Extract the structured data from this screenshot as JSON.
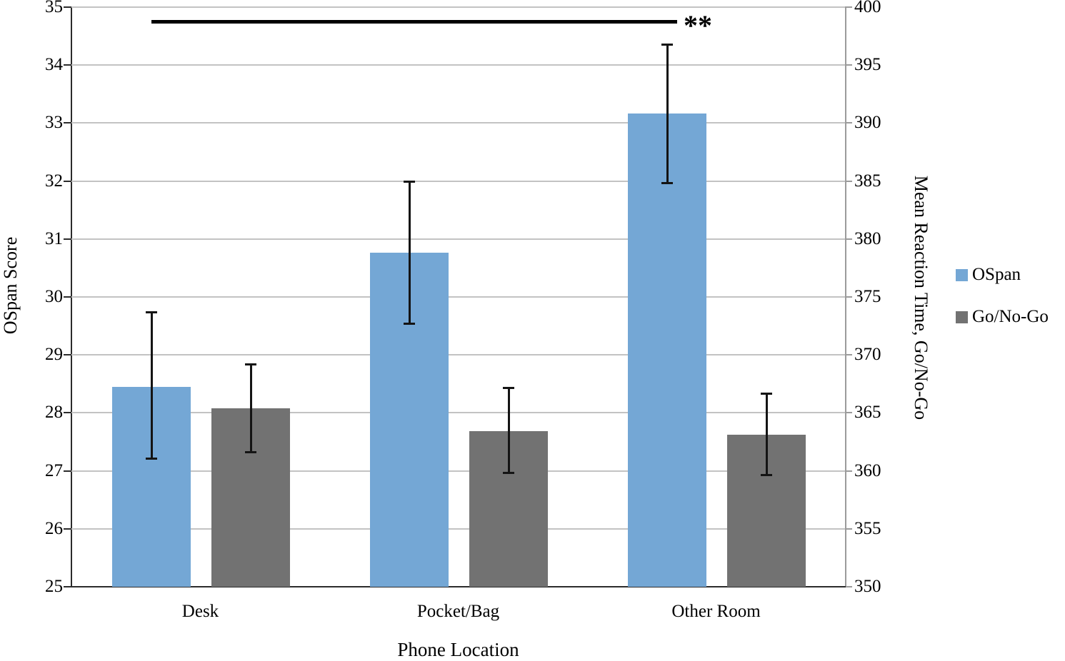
{
  "chart_data": {
    "type": "bar",
    "title": "",
    "categories": [
      "Desk",
      "Pocket/Bag",
      "Other Room"
    ],
    "xlabel": "Phone Location",
    "grid": true,
    "legend_position": "right",
    "left_axis": {
      "label": "OSpan Score",
      "min": 25,
      "max": 35,
      "step": 1
    },
    "right_axis": {
      "label": "Mean Reaction Time, Go/No-Go",
      "min": 350,
      "max": 400,
      "step": 5
    },
    "series": [
      {
        "name": "OSpan",
        "axis": "left",
        "color": "#74A7D5",
        "values": [
          28.45,
          30.76,
          33.16
        ],
        "error_low": [
          27.2,
          29.53,
          31.96
        ],
        "error_high": [
          29.74,
          32.0,
          34.36
        ]
      },
      {
        "name": "Go/No-Go",
        "axis": "right",
        "color": "#727272",
        "values": [
          365.4,
          363.4,
          363.1
        ],
        "error_low": [
          361.6,
          359.8,
          359.6
        ],
        "error_high": [
          369.2,
          367.2,
          366.7
        ]
      }
    ],
    "annotation": {
      "label": "**",
      "from_category": "Desk",
      "to_category": "Other Room",
      "series": "OSpan",
      "y_left_axis": 34.75
    }
  }
}
